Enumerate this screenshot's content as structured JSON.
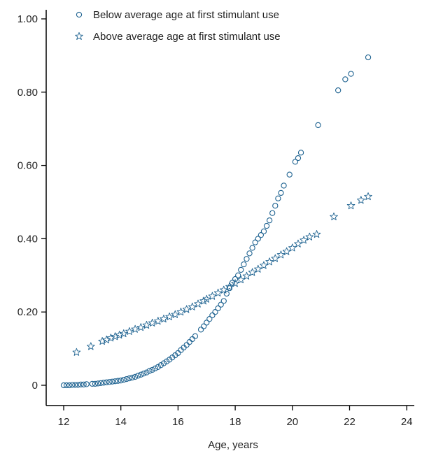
{
  "chart_data": {
    "type": "scatter",
    "title": "",
    "xlabel": "Age, years",
    "ylabel": "",
    "xlim": [
      12,
      24
    ],
    "ylim": [
      0,
      1.0
    ],
    "x_ticks": [
      12,
      14,
      16,
      18,
      20,
      22,
      24
    ],
    "x_tick_labels": [
      "12",
      "14",
      "16",
      "18",
      "20",
      "22",
      "24"
    ],
    "y_ticks": [
      0,
      0.2,
      0.4,
      0.6,
      0.8,
      1.0
    ],
    "y_tick_labels": [
      "0",
      "0.20",
      "0.40",
      "0.60",
      "0.80",
      "1.00"
    ],
    "grid": false,
    "legend_position": "top-left",
    "colors": {
      "series": "#1f6391",
      "axis": "#000000",
      "text": "#222222"
    },
    "series": [
      {
        "name": "Below average age at first stimulant use",
        "marker": "circle",
        "points": [
          [
            12.0,
            0.0
          ],
          [
            12.1,
            0.0
          ],
          [
            12.2,
            0.0
          ],
          [
            12.3,
            0.001
          ],
          [
            12.4,
            0.001
          ],
          [
            12.5,
            0.001
          ],
          [
            12.6,
            0.002
          ],
          [
            12.7,
            0.002
          ],
          [
            12.8,
            0.003
          ],
          [
            13.0,
            0.004
          ],
          [
            13.1,
            0.004
          ],
          [
            13.2,
            0.005
          ],
          [
            13.3,
            0.006
          ],
          [
            13.4,
            0.007
          ],
          [
            13.5,
            0.008
          ],
          [
            13.6,
            0.009
          ],
          [
            13.7,
            0.01
          ],
          [
            13.8,
            0.011
          ],
          [
            13.9,
            0.012
          ],
          [
            14.0,
            0.013
          ],
          [
            14.1,
            0.015
          ],
          [
            14.2,
            0.017
          ],
          [
            14.3,
            0.019
          ],
          [
            14.4,
            0.021
          ],
          [
            14.5,
            0.023
          ],
          [
            14.6,
            0.026
          ],
          [
            14.7,
            0.029
          ],
          [
            14.8,
            0.032
          ],
          [
            14.9,
            0.035
          ],
          [
            15.0,
            0.039
          ],
          [
            15.1,
            0.042
          ],
          [
            15.2,
            0.046
          ],
          [
            15.3,
            0.05
          ],
          [
            15.4,
            0.055
          ],
          [
            15.5,
            0.06
          ],
          [
            15.6,
            0.065
          ],
          [
            15.7,
            0.07
          ],
          [
            15.8,
            0.076
          ],
          [
            15.9,
            0.082
          ],
          [
            16.0,
            0.088
          ],
          [
            16.1,
            0.096
          ],
          [
            16.2,
            0.103
          ],
          [
            16.3,
            0.11
          ],
          [
            16.4,
            0.118
          ],
          [
            16.5,
            0.126
          ],
          [
            16.6,
            0.134
          ],
          [
            16.8,
            0.152
          ],
          [
            16.9,
            0.161
          ],
          [
            17.0,
            0.171
          ],
          [
            17.1,
            0.181
          ],
          [
            17.2,
            0.191
          ],
          [
            17.3,
            0.2
          ],
          [
            17.4,
            0.21
          ],
          [
            17.5,
            0.22
          ],
          [
            17.6,
            0.23
          ],
          [
            17.7,
            0.25
          ],
          [
            17.8,
            0.265
          ],
          [
            17.9,
            0.28
          ],
          [
            18.0,
            0.29
          ],
          [
            18.1,
            0.3
          ],
          [
            18.2,
            0.315
          ],
          [
            18.3,
            0.33
          ],
          [
            18.4,
            0.345
          ],
          [
            18.5,
            0.36
          ],
          [
            18.6,
            0.375
          ],
          [
            18.7,
            0.39
          ],
          [
            18.8,
            0.4
          ],
          [
            18.9,
            0.41
          ],
          [
            19.0,
            0.42
          ],
          [
            19.1,
            0.435
          ],
          [
            19.2,
            0.45
          ],
          [
            19.3,
            0.47
          ],
          [
            19.4,
            0.49
          ],
          [
            19.5,
            0.51
          ],
          [
            19.6,
            0.525
          ],
          [
            19.7,
            0.545
          ],
          [
            19.9,
            0.575
          ],
          [
            20.1,
            0.61
          ],
          [
            20.2,
            0.62
          ],
          [
            20.3,
            0.635
          ],
          [
            20.9,
            0.71
          ],
          [
            21.6,
            0.805
          ],
          [
            21.85,
            0.835
          ],
          [
            22.05,
            0.85
          ],
          [
            22.65,
            0.895
          ]
        ]
      },
      {
        "name": "Above average age at first stimulant use",
        "marker": "star",
        "points": [
          [
            12.45,
            0.09
          ],
          [
            12.95,
            0.106
          ],
          [
            13.35,
            0.12
          ],
          [
            13.5,
            0.124
          ],
          [
            13.65,
            0.129
          ],
          [
            13.8,
            0.133
          ],
          [
            13.95,
            0.137
          ],
          [
            14.1,
            0.141
          ],
          [
            14.3,
            0.147
          ],
          [
            14.5,
            0.153
          ],
          [
            14.7,
            0.158
          ],
          [
            14.9,
            0.164
          ],
          [
            15.1,
            0.17
          ],
          [
            15.3,
            0.175
          ],
          [
            15.5,
            0.181
          ],
          [
            15.7,
            0.187
          ],
          [
            15.9,
            0.193
          ],
          [
            16.1,
            0.2
          ],
          [
            16.3,
            0.207
          ],
          [
            16.5,
            0.214
          ],
          [
            16.7,
            0.222
          ],
          [
            16.9,
            0.23
          ],
          [
            17.0,
            0.235
          ],
          [
            17.2,
            0.243
          ],
          [
            17.4,
            0.252
          ],
          [
            17.6,
            0.26
          ],
          [
            17.8,
            0.269
          ],
          [
            18.0,
            0.278
          ],
          [
            18.2,
            0.288
          ],
          [
            18.4,
            0.298
          ],
          [
            18.6,
            0.308
          ],
          [
            18.8,
            0.317
          ],
          [
            19.0,
            0.327
          ],
          [
            19.2,
            0.337
          ],
          [
            19.4,
            0.346
          ],
          [
            19.6,
            0.356
          ],
          [
            19.8,
            0.365
          ],
          [
            20.0,
            0.375
          ],
          [
            20.2,
            0.386
          ],
          [
            20.4,
            0.396
          ],
          [
            20.6,
            0.405
          ],
          [
            20.85,
            0.412
          ],
          [
            21.45,
            0.46
          ],
          [
            22.05,
            0.49
          ],
          [
            22.4,
            0.505
          ],
          [
            22.65,
            0.515
          ]
        ]
      }
    ]
  }
}
